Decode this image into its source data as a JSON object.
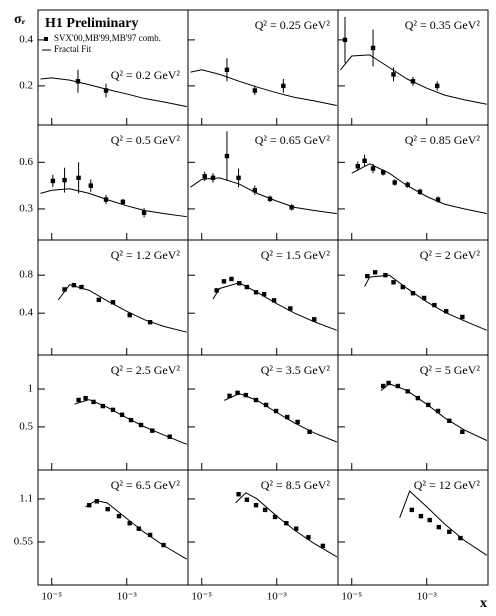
{
  "figure": {
    "title": "H1 Preliminary",
    "ylabel": "σᵣ",
    "xlabel": "x",
    "legend": [
      "SVX'00,MB'99,MB'97 comb.",
      "Fractal Fit"
    ]
  },
  "chart_data": [
    {
      "type": "scatter",
      "title": "Q² = 0.2 GeV²",
      "log_x": true,
      "xlim": [
        4.3e-06,
        0.043
      ],
      "ylim": [
        0.03,
        0.53
      ],
      "yticks": [
        0.2,
        0.4
      ],
      "xticks": [
        {
          "value": 1e-05,
          "label": "10⁻⁵"
        },
        {
          "value": 0.001,
          "label": "10⁻³"
        }
      ],
      "x": [
        5e-05,
        0.00028
      ],
      "values": [
        0.22,
        0.18
      ],
      "errors": [
        0.05,
        0.03
      ],
      "fit_x": [
        5e-06,
        1e-05,
        3e-05,
        0.0001,
        0.0003,
        0.001,
        0.003,
        0.01,
        0.04
      ],
      "fit_values": [
        0.23,
        0.235,
        0.225,
        0.205,
        0.185,
        0.165,
        0.145,
        0.13,
        0.11
      ]
    },
    {
      "type": "scatter",
      "title": "Q² = 0.25 GeV²",
      "log_x": true,
      "xlim": [
        4.3e-06,
        0.043
      ],
      "ylim": [
        0.03,
        0.53
      ],
      "yticks": [
        0.2,
        0.4
      ],
      "xticks": [
        {
          "value": 1e-05,
          "label": "10⁻⁵"
        },
        {
          "value": 0.001,
          "label": "10⁻³"
        }
      ],
      "x": [
        4.7e-05,
        0.00026,
        0.0015
      ],
      "values": [
        0.27,
        0.18,
        0.2
      ],
      "errors": [
        0.05,
        0.02,
        0.03
      ],
      "fit_x": [
        5e-06,
        1e-05,
        3e-05,
        0.0001,
        0.0003,
        0.001,
        0.003,
        0.01,
        0.04
      ],
      "fit_values": [
        0.26,
        0.27,
        0.25,
        0.22,
        0.195,
        0.17,
        0.15,
        0.135,
        0.115
      ]
    },
    {
      "type": "scatter",
      "title": "Q² = 0.35 GeV²",
      "log_x": true,
      "xlim": [
        4.3e-06,
        0.043
      ],
      "ylim": [
        0.03,
        0.53
      ],
      "yticks": [
        0.2,
        0.4
      ],
      "xticks": [
        {
          "value": 1e-05,
          "label": "10⁻⁵"
        },
        {
          "value": 0.001,
          "label": "10⁻³"
        }
      ],
      "x": [
        6.6e-06,
        3.7e-05,
        0.00013,
        0.00043,
        0.0019
      ],
      "values": [
        0.4,
        0.365,
        0.25,
        0.22,
        0.2
      ],
      "errors": [
        0.1,
        0.08,
        0.03,
        0.02,
        0.02
      ],
      "fit_x": [
        5e-06,
        1e-05,
        3e-05,
        0.0001,
        0.0003,
        0.001,
        0.003,
        0.01,
        0.04
      ],
      "fit_values": [
        0.27,
        0.33,
        0.335,
        0.28,
        0.23,
        0.19,
        0.16,
        0.14,
        0.12
      ]
    },
    {
      "type": "scatter",
      "title": "Q² = 0.5 GeV²",
      "log_x": true,
      "xlim": [
        4.3e-06,
        0.043
      ],
      "ylim": [
        0.1,
        0.84
      ],
      "yticks": [
        0.3,
        0.6
      ],
      "xticks": [
        {
          "value": 1e-05,
          "label": "10⁻⁵"
        },
        {
          "value": 0.001,
          "label": "10⁻³"
        }
      ],
      "x": [
        1.07e-05,
        2.2e-05,
        5.2e-05,
        0.00011,
        0.00028,
        0.00079,
        0.0029
      ],
      "values": [
        0.48,
        0.485,
        0.5,
        0.45,
        0.36,
        0.345,
        0.275
      ],
      "errors": [
        0.04,
        0.08,
        0.1,
        0.04,
        0.03,
        0.02,
        0.03
      ],
      "fit_x": [
        5e-06,
        1e-05,
        3e-05,
        0.0001,
        0.0003,
        0.001,
        0.003,
        0.01,
        0.04
      ],
      "fit_values": [
        0.4,
        0.42,
        0.43,
        0.4,
        0.36,
        0.32,
        0.29,
        0.27,
        0.25
      ]
    },
    {
      "type": "scatter",
      "title": "Q² = 0.65 GeV²",
      "log_x": true,
      "xlim": [
        4.3e-06,
        0.043
      ],
      "ylim": [
        0.1,
        0.84
      ],
      "yticks": [
        0.3,
        0.6
      ],
      "xticks": [
        {
          "value": 1e-05,
          "label": "10⁻⁵"
        },
        {
          "value": 0.001,
          "label": "10⁻³"
        }
      ],
      "x": [
        1.2e-05,
        2e-05,
        4.7e-05,
        9.6e-05,
        0.00026,
        0.00066,
        0.0025
      ],
      "values": [
        0.51,
        0.5,
        0.64,
        0.5,
        0.42,
        0.365,
        0.31
      ],
      "errors": [
        0.03,
        0.03,
        0.16,
        0.06,
        0.03,
        0.02,
        0.02
      ],
      "fit_x": [
        5e-06,
        1e-05,
        3e-05,
        0.0001,
        0.0003,
        0.001,
        0.003,
        0.01,
        0.04
      ],
      "fit_values": [
        0.44,
        0.49,
        0.5,
        0.46,
        0.4,
        0.35,
        0.31,
        0.29,
        0.27
      ]
    },
    {
      "type": "scatter",
      "title": "Q² = 0.85 GeV²",
      "log_x": true,
      "xlim": [
        4.3e-06,
        0.043
      ],
      "ylim": [
        0.1,
        0.84
      ],
      "yticks": [
        0.3,
        0.6
      ],
      "xticks": [
        {
          "value": 1e-05,
          "label": "10⁻⁵"
        },
        {
          "value": 0.001,
          "label": "10⁻³"
        }
      ],
      "x": [
        1.45e-05,
        2.2e-05,
        3.7e-05,
        6.9e-05,
        0.00014,
        0.00031,
        0.00066,
        0.002
      ],
      "values": [
        0.575,
        0.61,
        0.56,
        0.535,
        0.47,
        0.455,
        0.41,
        0.36
      ],
      "errors": [
        0.03,
        0.04,
        0.03,
        0.02,
        0.02,
        0.02,
        0.02,
        0.02
      ],
      "fit_x": [
        1e-05,
        3e-05,
        0.0001,
        0.0003,
        0.001,
        0.003,
        0.01,
        0.04
      ],
      "fit_values": [
        0.53,
        0.59,
        0.53,
        0.45,
        0.38,
        0.33,
        0.3,
        0.27
      ]
    },
    {
      "type": "scatter",
      "title": "Q² = 1.2 GeV²",
      "log_x": true,
      "xlim": [
        4.3e-06,
        0.043
      ],
      "ylim": [
        -0.04,
        1.17
      ],
      "yticks": [
        0.4,
        0.8
      ],
      "xticks": [
        {
          "value": 1e-05,
          "label": "10⁻⁵"
        },
        {
          "value": 0.001,
          "label": "10⁻³"
        }
      ],
      "x": [
        2.2e-05,
        3.9e-05,
        6.2e-05,
        0.00018,
        0.00043,
        0.0012,
        0.0042
      ],
      "values": [
        0.65,
        0.695,
        0.675,
        0.54,
        0.515,
        0.38,
        0.305
      ],
      "fit_x": [
        1.5e-05,
        3e-05,
        0.0001,
        0.0003,
        0.001,
        0.003,
        0.01,
        0.04
      ],
      "fit_values": [
        0.54,
        0.7,
        0.64,
        0.53,
        0.42,
        0.33,
        0.26,
        0.2
      ]
    },
    {
      "type": "scatter",
      "title": "Q² = 1.5 GeV²",
      "log_x": true,
      "xlim": [
        4.3e-06,
        0.043
      ],
      "ylim": [
        -0.04,
        1.17
      ],
      "yticks": [
        0.4,
        0.8
      ],
      "xticks": [
        {
          "value": 1e-05,
          "label": "10⁻⁵"
        },
        {
          "value": 0.001,
          "label": "10⁻³"
        }
      ],
      "x": [
        2.5e-05,
        3.9e-05,
        6.2e-05,
        0.0001,
        0.00016,
        0.00028,
        0.00046,
        0.00085,
        0.0023,
        0.01
      ],
      "values": [
        0.64,
        0.735,
        0.76,
        0.715,
        0.675,
        0.62,
        0.6,
        0.535,
        0.45,
        0.335
      ],
      "fit_x": [
        2e-05,
        3e-05,
        0.0001,
        0.0003,
        0.001,
        0.003,
        0.01,
        0.04
      ],
      "fit_values": [
        0.55,
        0.66,
        0.72,
        0.62,
        0.5,
        0.4,
        0.31,
        0.22
      ]
    },
    {
      "type": "scatter",
      "title": "Q² = 2 GeV²",
      "log_x": true,
      "xlim": [
        4.3e-06,
        0.043
      ],
      "ylim": [
        -0.04,
        1.17
      ],
      "yticks": [
        0.4,
        0.8
      ],
      "xticks": [
        {
          "value": 1e-05,
          "label": "10⁻⁵"
        },
        {
          "value": 0.001,
          "label": "10⁻³"
        }
      ],
      "x": [
        2.6e-05,
        4.2e-05,
        7.9e-05,
        0.00013,
        0.00023,
        0.00043,
        0.00085,
        0.0016,
        0.0033,
        0.0089
      ],
      "values": [
        0.79,
        0.83,
        0.8,
        0.725,
        0.675,
        0.61,
        0.56,
        0.485,
        0.42,
        0.36
      ],
      "fit_x": [
        2.2e-05,
        3e-05,
        0.0001,
        0.0003,
        0.001,
        0.003,
        0.01,
        0.04
      ],
      "fit_values": [
        0.68,
        0.78,
        0.8,
        0.66,
        0.52,
        0.41,
        0.32,
        0.22
      ]
    },
    {
      "type": "scatter",
      "title": "Q² = 2.5 GeV²",
      "log_x": true,
      "xlim": [
        4.3e-06,
        0.043
      ],
      "ylim": [
        -0.07,
        1.45
      ],
      "yticks": [
        0.5,
        1
      ],
      "xticks": [
        {
          "value": 1e-05,
          "label": "10⁻⁵"
        },
        {
          "value": 0.001,
          "label": "10⁻³"
        }
      ],
      "x": [
        5.2e-05,
        8e-05,
        0.00013,
        0.00023,
        0.00043,
        0.00075,
        0.0013,
        0.0024,
        0.0048,
        0.014
      ],
      "values": [
        0.855,
        0.88,
        0.83,
        0.775,
        0.725,
        0.66,
        0.59,
        0.525,
        0.45,
        0.37
      ],
      "fit_x": [
        4e-05,
        0.0001,
        0.0003,
        0.001,
        0.003,
        0.01,
        0.04
      ],
      "fit_values": [
        0.8,
        0.86,
        0.76,
        0.62,
        0.5,
        0.39,
        0.27
      ]
    },
    {
      "type": "scatter",
      "title": "Q² = 3.5 GeV²",
      "log_x": true,
      "xlim": [
        4.3e-06,
        0.043
      ],
      "ylim": [
        -0.07,
        1.45
      ],
      "yticks": [
        0.5,
        1
      ],
      "xticks": [
        {
          "value": 1e-05,
          "label": "10⁻⁵"
        },
        {
          "value": 0.001,
          "label": "10⁻³"
        }
      ],
      "x": [
        5.5e-05,
        9e-05,
        0.00015,
        0.00028,
        0.00052,
        0.00096,
        0.0019,
        0.0036,
        0.0075
      ],
      "values": [
        0.91,
        0.95,
        0.92,
        0.855,
        0.79,
        0.71,
        0.63,
        0.565,
        0.435
      ],
      "fit_x": [
        4e-05,
        0.0001,
        0.0003,
        0.001,
        0.003,
        0.01,
        0.04
      ],
      "fit_values": [
        0.85,
        0.94,
        0.85,
        0.69,
        0.55,
        0.42,
        0.3
      ]
    },
    {
      "type": "scatter",
      "title": "Q² = 5 GeV²",
      "log_x": true,
      "xlim": [
        4.3e-06,
        0.043
      ],
      "ylim": [
        -0.07,
        1.45
      ],
      "yticks": [
        0.5,
        1
      ],
      "xticks": [
        {
          "value": 1e-05,
          "label": "10⁻⁵"
        },
        {
          "value": 0.001,
          "label": "10⁻³"
        }
      ],
      "x": [
        6.9e-05,
        9.6e-05,
        0.00017,
        0.00031,
        0.00058,
        0.0011,
        0.002,
        0.004,
        0.0089
      ],
      "values": [
        1.04,
        1.08,
        1.04,
        0.97,
        0.88,
        0.79,
        0.71,
        0.58,
        0.435
      ],
      "fit_x": [
        6e-05,
        0.0001,
        0.0003,
        0.001,
        0.003,
        0.01,
        0.04
      ],
      "fit_values": [
        0.98,
        1.07,
        0.98,
        0.8,
        0.62,
        0.46,
        0.32
      ]
    },
    {
      "type": "scatter",
      "title": "Q² = 6.5 GeV²",
      "log_x": true,
      "xlim": [
        4.3e-06,
        0.043
      ],
      "ylim": [
        0,
        1.47
      ],
      "yticks": [
        0.55,
        1.1
      ],
      "xticks": [
        {
          "value": 1e-05,
          "label": "10⁻⁵"
        },
        {
          "value": 0.001,
          "label": "10⁻³"
        }
      ],
      "x": [
        0.0001,
        0.00016,
        0.00031,
        0.00062,
        0.0012,
        0.0021,
        0.0042,
        0.0096
      ],
      "values": [
        1.02,
        1.07,
        0.97,
        0.88,
        0.79,
        0.72,
        0.64,
        0.51
      ],
      "fit_x": [
        8e-05,
        0.00015,
        0.0003,
        0.001,
        0.003,
        0.01,
        0.04
      ],
      "fit_values": [
        1,
        1.08,
        1.05,
        0.85,
        0.67,
        0.5,
        0.33
      ]
    },
    {
      "type": "scatter",
      "title": "Q² = 8.5 GeV²",
      "log_x": true,
      "xlim": [
        4.3e-06,
        0.043
      ],
      "ylim": [
        0,
        1.47
      ],
      "yticks": [
        0.55,
        1.1
      ],
      "xticks": [
        {
          "value": 1e-05,
          "label": "10⁻⁵"
        },
        {
          "value": 0.001,
          "label": "10⁻³"
        }
      ],
      "x": [
        9.6e-05,
        0.00016,
        0.00028,
        0.00049,
        0.0009,
        0.0018,
        0.0033,
        0.007,
        0.017
      ],
      "values": [
        1.16,
        1.09,
        1.02,
        0.96,
        0.87,
        0.79,
        0.72,
        0.61,
        0.5
      ],
      "fit_x": [
        8e-05,
        0.00015,
        0.0003,
        0.001,
        0.003,
        0.01,
        0.04
      ],
      "fit_values": [
        1.05,
        1.18,
        1.1,
        0.88,
        0.7,
        0.53,
        0.36
      ]
    },
    {
      "type": "scatter",
      "title": "Q² = 12 GeV²",
      "log_x": true,
      "xlim": [
        4.3e-06,
        0.043
      ],
      "ylim": [
        0,
        1.47
      ],
      "yticks": [
        0.55,
        1.1
      ],
      "xticks": [
        {
          "value": 1e-05,
          "label": "10⁻⁵"
        },
        {
          "value": 0.001,
          "label": "10⁻³"
        }
      ],
      "x": [
        0.0004,
        0.0007,
        0.0012,
        0.0021,
        0.004,
        0.0079
      ],
      "values": [
        0.96,
        0.88,
        0.83,
        0.74,
        0.68,
        0.6
      ],
      "fit_x": [
        0.00019,
        0.00035,
        0.001,
        0.003,
        0.01,
        0.04
      ],
      "fit_values": [
        0.86,
        1.2,
        1,
        0.78,
        0.57,
        0.38
      ]
    }
  ]
}
